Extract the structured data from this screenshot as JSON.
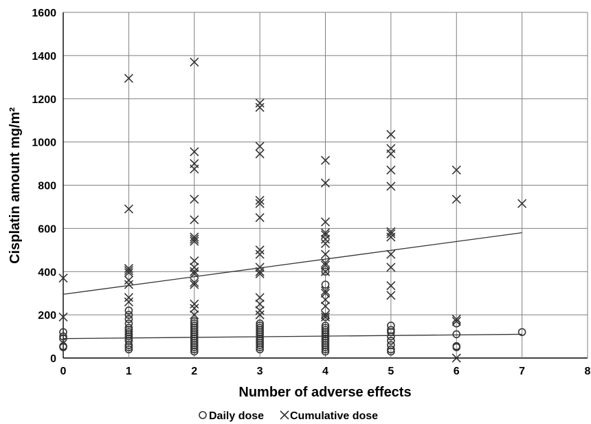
{
  "chart_data": {
    "type": "scatter",
    "xlabel": "Number of adverse effects",
    "ylabel": "Cisplatin amount mg/m²",
    "xlim": [
      0,
      8
    ],
    "ylim": [
      0,
      1600
    ],
    "x_ticks": [
      "0",
      "1",
      "2",
      "3",
      "4",
      "5",
      "6",
      "7",
      "8"
    ],
    "y_ticks": [
      "0",
      "200",
      "400",
      "600",
      "800",
      "1000",
      "1200",
      "1400",
      "1600"
    ],
    "grid": "vertical and horizontal major gridlines",
    "legend_position": "bottom",
    "series": [
      {
        "name": "Daily dose",
        "marker": "circle",
        "color": "#333333",
        "points": [
          [
            0,
            50
          ],
          [
            0,
            55
          ],
          [
            0,
            90
          ],
          [
            0,
            100
          ],
          [
            0,
            120
          ],
          [
            1,
            40
          ],
          [
            1,
            50
          ],
          [
            1,
            60
          ],
          [
            1,
            80
          ],
          [
            1,
            90
          ],
          [
            1,
            100
          ],
          [
            1,
            110
          ],
          [
            1,
            120
          ],
          [
            1,
            130
          ],
          [
            1,
            140
          ],
          [
            1,
            160
          ],
          [
            1,
            180
          ],
          [
            1,
            200
          ],
          [
            1,
            220
          ],
          [
            2,
            30
          ],
          [
            2,
            40
          ],
          [
            2,
            50
          ],
          [
            2,
            60
          ],
          [
            2,
            70
          ],
          [
            2,
            80
          ],
          [
            2,
            90
          ],
          [
            2,
            100
          ],
          [
            2,
            110
          ],
          [
            2,
            120
          ],
          [
            2,
            130
          ],
          [
            2,
            140
          ],
          [
            2,
            150
          ],
          [
            2,
            160
          ],
          [
            2,
            170
          ],
          [
            3,
            40
          ],
          [
            3,
            50
          ],
          [
            3,
            60
          ],
          [
            3,
            70
          ],
          [
            3,
            80
          ],
          [
            3,
            90
          ],
          [
            3,
            100
          ],
          [
            3,
            110
          ],
          [
            3,
            120
          ],
          [
            3,
            130
          ],
          [
            3,
            140
          ],
          [
            3,
            150
          ],
          [
            3,
            160
          ],
          [
            4,
            30
          ],
          [
            4,
            40
          ],
          [
            4,
            50
          ],
          [
            4,
            60
          ],
          [
            4,
            70
          ],
          [
            4,
            80
          ],
          [
            4,
            90
          ],
          [
            4,
            100
          ],
          [
            4,
            110
          ],
          [
            4,
            120
          ],
          [
            4,
            130
          ],
          [
            4,
            140
          ],
          [
            4,
            150
          ],
          [
            4,
            190
          ],
          [
            4,
            340
          ],
          [
            4,
            400
          ],
          [
            5,
            30
          ],
          [
            5,
            40
          ],
          [
            5,
            60
          ],
          [
            5,
            80
          ],
          [
            5,
            100
          ],
          [
            5,
            120
          ],
          [
            5,
            130
          ],
          [
            5,
            150
          ],
          [
            6,
            50
          ],
          [
            6,
            55
          ],
          [
            6,
            110
          ],
          [
            6,
            160
          ],
          [
            7,
            120
          ]
        ]
      },
      {
        "name": "Cumulative dose",
        "marker": "x",
        "color": "#333333",
        "points": [
          [
            0,
            190
          ],
          [
            0,
            370
          ],
          [
            1,
            260
          ],
          [
            1,
            280
          ],
          [
            1,
            340
          ],
          [
            1,
            360
          ],
          [
            1,
            395
          ],
          [
            1,
            405
          ],
          [
            1,
            415
          ],
          [
            1,
            690
          ],
          [
            1,
            1295
          ],
          [
            2,
            200
          ],
          [
            2,
            230
          ],
          [
            2,
            250
          ],
          [
            2,
            340
          ],
          [
            2,
            350
          ],
          [
            2,
            390
          ],
          [
            2,
            400
          ],
          [
            2,
            420
          ],
          [
            2,
            450
          ],
          [
            2,
            540
          ],
          [
            2,
            550
          ],
          [
            2,
            560
          ],
          [
            2,
            640
          ],
          [
            2,
            735
          ],
          [
            2,
            875
          ],
          [
            2,
            900
          ],
          [
            2,
            955
          ],
          [
            2,
            1370
          ],
          [
            3,
            200
          ],
          [
            3,
            220
          ],
          [
            3,
            250
          ],
          [
            3,
            280
          ],
          [
            3,
            390
          ],
          [
            3,
            400
          ],
          [
            3,
            420
          ],
          [
            3,
            480
          ],
          [
            3,
            500
          ],
          [
            3,
            650
          ],
          [
            3,
            715
          ],
          [
            3,
            730
          ],
          [
            3,
            945
          ],
          [
            3,
            980
          ],
          [
            3,
            1160
          ],
          [
            3,
            1180
          ],
          [
            4,
            190
          ],
          [
            4,
            200
          ],
          [
            4,
            240
          ],
          [
            4,
            270
          ],
          [
            4,
            300
          ],
          [
            4,
            310
          ],
          [
            4,
            400
          ],
          [
            4,
            430
          ],
          [
            4,
            440
          ],
          [
            4,
            480
          ],
          [
            4,
            530
          ],
          [
            4,
            550
          ],
          [
            4,
            570
          ],
          [
            4,
            580
          ],
          [
            4,
            630
          ],
          [
            4,
            810
          ],
          [
            4,
            915
          ],
          [
            5,
            290
          ],
          [
            5,
            335
          ],
          [
            5,
            420
          ],
          [
            5,
            480
          ],
          [
            5,
            560
          ],
          [
            5,
            575
          ],
          [
            5,
            585
          ],
          [
            5,
            795
          ],
          [
            5,
            870
          ],
          [
            5,
            945
          ],
          [
            5,
            970
          ],
          [
            5,
            1035
          ],
          [
            6,
            0
          ],
          [
            6,
            170
          ],
          [
            6,
            180
          ],
          [
            6,
            735
          ],
          [
            6,
            870
          ],
          [
            7,
            715
          ]
        ]
      }
    ],
    "trendlines": [
      {
        "series": "Daily dose",
        "from": [
          0,
          90
        ],
        "to": [
          7,
          110
        ]
      },
      {
        "series": "Cumulative dose",
        "from": [
          0,
          295
        ],
        "to": [
          7,
          580
        ]
      }
    ]
  },
  "legend": {
    "items": [
      {
        "label": "Daily dose",
        "marker": "circle"
      },
      {
        "label": "Cumulative dose",
        "marker": "x"
      }
    ]
  }
}
